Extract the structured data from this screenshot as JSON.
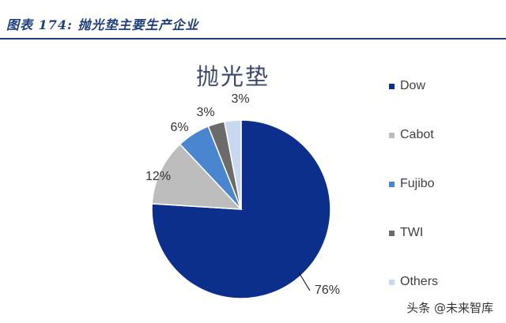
{
  "caption": "图表 174:  抛光垫主要生产企业",
  "watermark": "头条 @未来智库",
  "chart_data": {
    "type": "pie",
    "title": "抛光垫",
    "slices": [
      {
        "name": "Dow",
        "value": 76,
        "label": "76%",
        "color": "#0b2f8a"
      },
      {
        "name": "Cabot",
        "value": 12,
        "label": "12%",
        "color": "#bdbdbd"
      },
      {
        "name": "Fujibo",
        "value": 6,
        "label": "6%",
        "color": "#4a86cf"
      },
      {
        "name": "TWI",
        "value": 3,
        "label": "3%",
        "color": "#6b6b6b"
      },
      {
        "name": "Others",
        "value": 3,
        "label": "3%",
        "color": "#c8d8f0"
      }
    ],
    "legend_position": "right",
    "start": "top-clockwise"
  }
}
